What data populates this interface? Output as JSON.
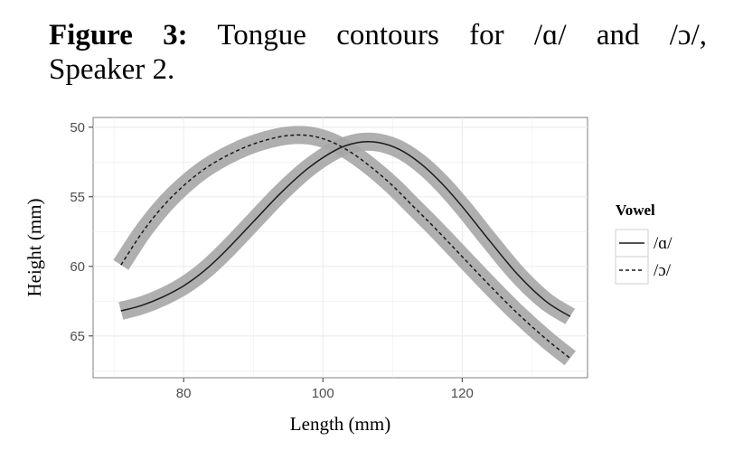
{
  "caption": {
    "label": "Figure 3:",
    "text_line1": "Tongue contours for /ɑ/ and /ɔ/,",
    "text_line2": "Speaker 2."
  },
  "colors": {
    "panel_background": "#ffffff",
    "panel_border": "#7f7f7f",
    "grid": "#ececec",
    "band": "#a6a6a6",
    "line": "#1a1a1a"
  },
  "chart_data": {
    "type": "line",
    "title": "",
    "xlabel": "Length (mm)",
    "ylabel": "Height (mm)",
    "xlim": [
      67,
      138
    ],
    "ylim": [
      68,
      49.3
    ],
    "y_reversed": true,
    "xticks": [
      80,
      100,
      120
    ],
    "yticks": [
      50,
      55,
      60,
      65
    ],
    "grid": true,
    "legend": {
      "title": "Vowel",
      "position": "right"
    },
    "band_halfwidth": 0.65,
    "series": [
      {
        "name": "/ɑ/",
        "linestyle": "solid",
        "x": [
          71,
          74,
          77,
          80,
          83,
          86,
          90,
          94,
          98,
          102,
          105,
          108,
          111,
          114,
          117,
          120,
          124,
          128,
          132,
          135.5
        ],
        "y": [
          63.2,
          62.8,
          62.2,
          61.4,
          60.3,
          58.9,
          56.8,
          54.7,
          52.9,
          51.6,
          51.1,
          51.1,
          51.6,
          52.6,
          54.0,
          55.7,
          58.2,
          60.6,
          62.5,
          63.6
        ]
      },
      {
        "name": "/ɔ/",
        "linestyle": "dashed",
        "x": [
          71,
          74,
          77,
          80,
          83,
          86,
          89,
          92,
          95,
          98,
          101,
          104,
          107,
          110,
          113,
          116,
          120,
          124,
          128,
          132,
          135.5
        ],
        "y": [
          59.9,
          57.6,
          55.7,
          54.2,
          53.0,
          52.1,
          51.4,
          50.9,
          50.6,
          50.6,
          51.0,
          51.8,
          52.9,
          54.2,
          55.7,
          57.2,
          59.3,
          61.4,
          63.4,
          65.2,
          66.6
        ]
      }
    ]
  }
}
